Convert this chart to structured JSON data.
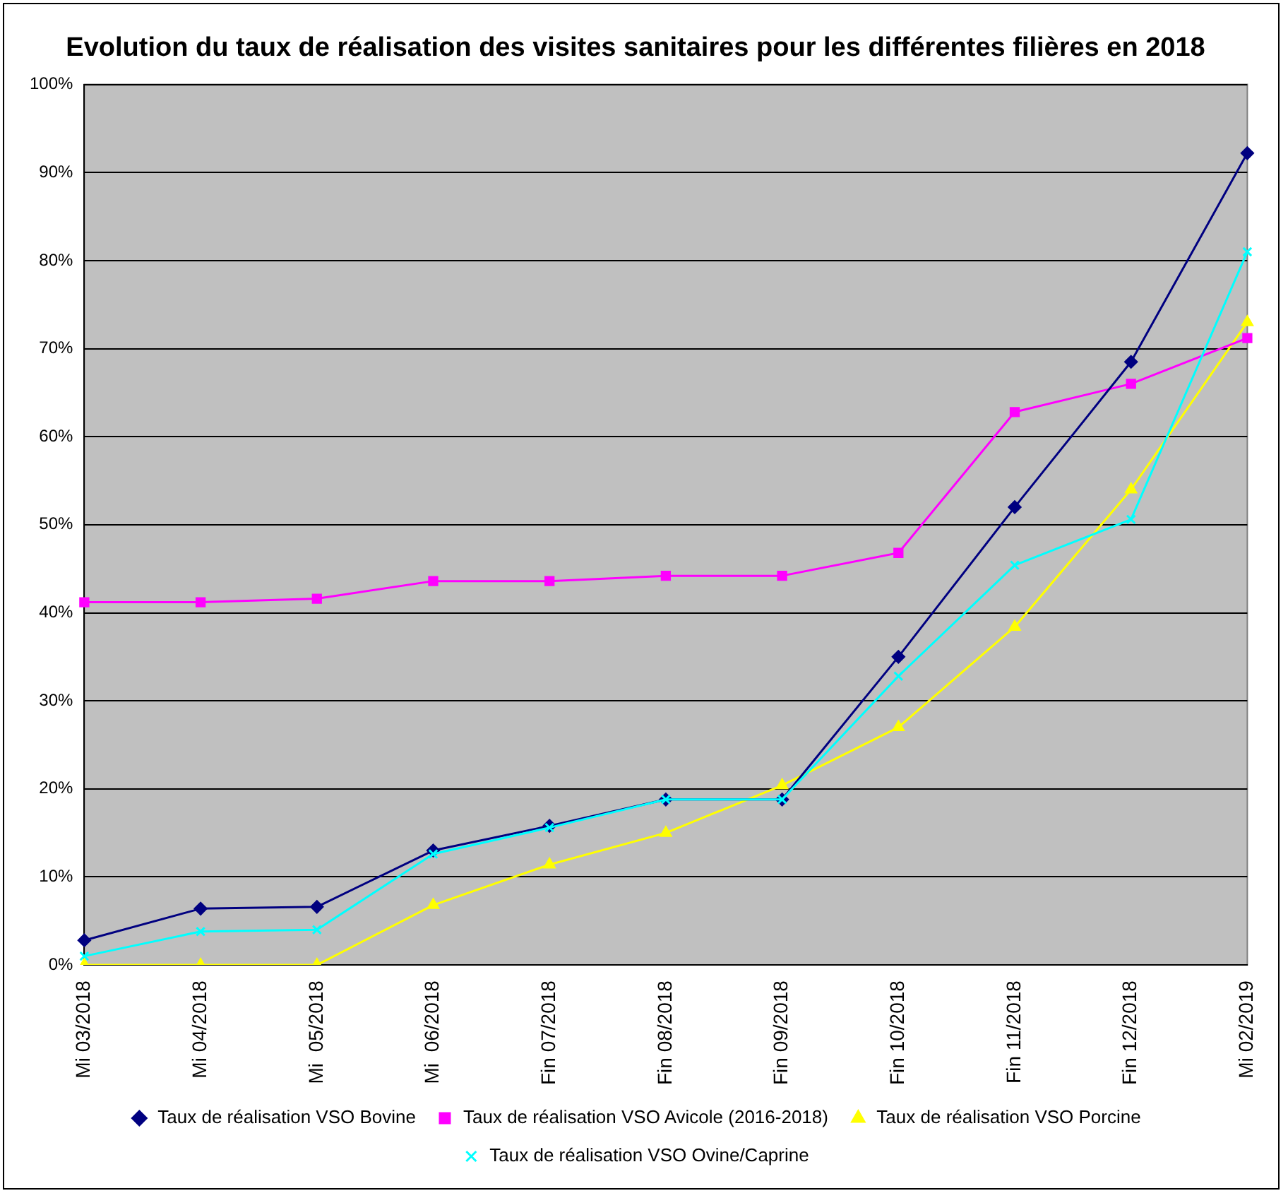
{
  "chart_data": {
    "type": "line",
    "title": "Evolution du taux de réalisation des visites sanitaires pour les différentes filières en 2018",
    "categories": [
      "Mi 03/2018",
      "Mi 04/2018",
      "Mi  05/2018",
      "Mi  06/2018",
      "Fin 07/2018",
      "Fin 08/2018",
      "Fin 09/2018",
      "Fin 10/2018",
      "Fin 11/2018",
      "Fin 12/2018",
      "Mi 02/2019"
    ],
    "series": [
      {
        "name": "Taux de réalisation VSO Bovine",
        "color": "#000080",
        "marker": "diamond",
        "values": [
          2.8,
          6.4,
          6.6,
          13,
          15.8,
          18.8,
          18.8,
          35,
          52,
          68.5,
          92.2
        ]
      },
      {
        "name": "Taux de réalisation VSO Avicole (2016-2018)",
        "color": "#ff00ff",
        "marker": "square",
        "values": [
          41.2,
          41.2,
          41.6,
          43.6,
          43.6,
          44.2,
          44.2,
          46.8,
          62.8,
          66,
          71.2
        ]
      },
      {
        "name": "Taux de réalisation VSO Porcine",
        "color": "#ffff00",
        "marker": "triangle",
        "values": [
          0,
          0,
          0,
          6.8,
          11.4,
          15,
          20.4,
          27,
          38.4,
          54,
          73
        ]
      },
      {
        "name": "Taux de réalisation VSO Ovine/Caprine",
        "color": "#00ffff",
        "marker": "cross",
        "values": [
          1,
          3.8,
          4,
          12.6,
          15.6,
          18.8,
          18.8,
          32.8,
          45.4,
          50.6,
          81
        ]
      }
    ],
    "ylim": [
      0,
      100
    ],
    "yticks": [
      {
        "value": 0,
        "label": "0%"
      },
      {
        "value": 10,
        "label": "10%"
      },
      {
        "value": 20,
        "label": "20%"
      },
      {
        "value": 30,
        "label": "30%"
      },
      {
        "value": 40,
        "label": "40%"
      },
      {
        "value": 50,
        "label": "50%"
      },
      {
        "value": 60,
        "label": "60%"
      },
      {
        "value": 70,
        "label": "70%"
      },
      {
        "value": 80,
        "label": "80%"
      },
      {
        "value": 90,
        "label": "90%"
      },
      {
        "value": 100,
        "label": "100%"
      }
    ],
    "grid": "y",
    "legend": "bottom",
    "line_style": "solid"
  }
}
